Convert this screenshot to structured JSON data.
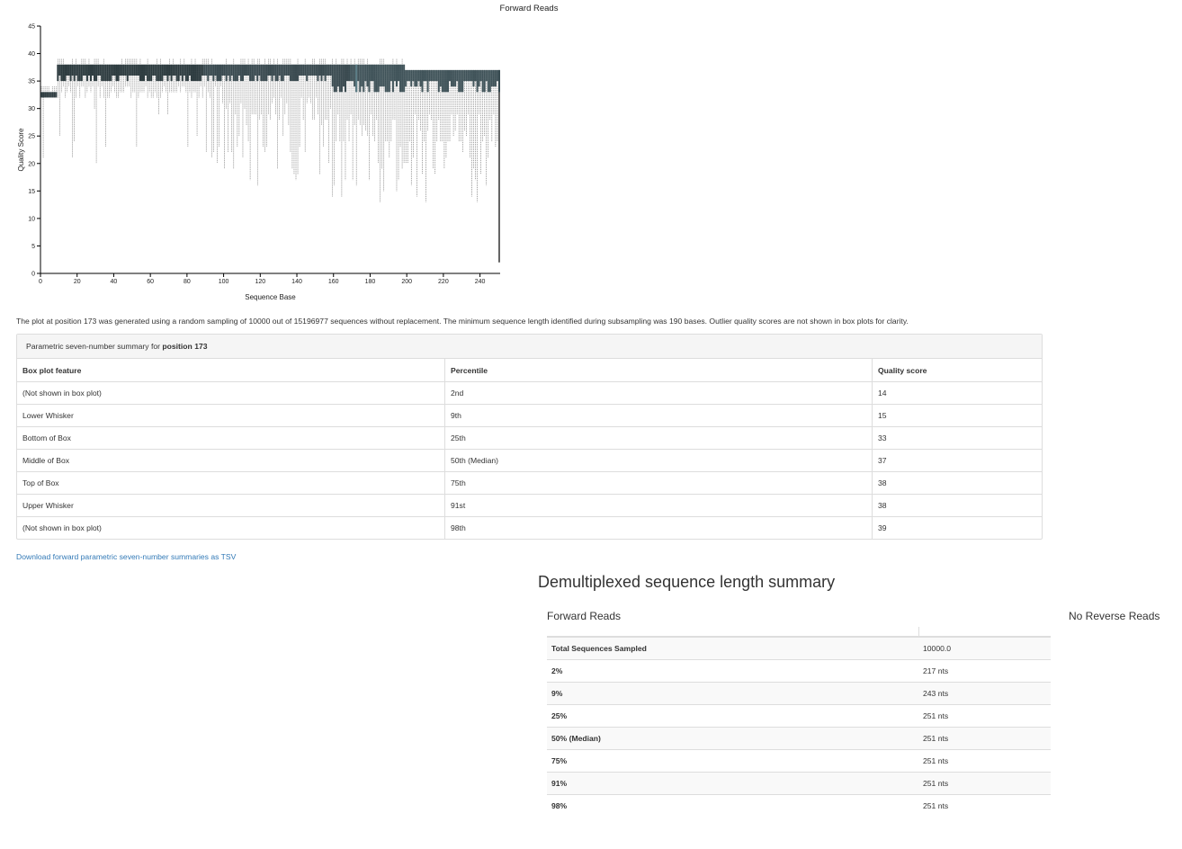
{
  "chart_title": "Forward Reads",
  "chart_data": {
    "type": "box",
    "title": "Forward Reads",
    "xlabel": "Sequence Base",
    "ylabel": "Quality Score",
    "xlim": [
      0,
      251
    ],
    "ylim": [
      0,
      45
    ],
    "xticks": [
      0,
      20,
      40,
      60,
      80,
      100,
      120,
      140,
      160,
      180,
      200,
      220,
      240
    ],
    "yticks": [
      0,
      5,
      10,
      15,
      20,
      25,
      30,
      35,
      40,
      45
    ],
    "positions": 251,
    "last_position_lower_whisker": 2,
    "highlighted_position": 173
  },
  "note": "The plot at position 173 was generated using a random sampling of 10000 out of 15196977 sequences without replacement. The minimum sequence length identified during subsampling was 190 bases. Outlier quality scores are not shown in box plots for clarity.",
  "summary": {
    "heading_prefix": "Parametric seven-number summary for ",
    "heading_position": "position 173",
    "columns": [
      "Box plot feature",
      "Percentile",
      "Quality score"
    ],
    "rows": [
      [
        "(Not shown in box plot)",
        "2nd",
        "14"
      ],
      [
        "Lower Whisker",
        "9th",
        "15"
      ],
      [
        "Bottom of Box",
        "25th",
        "33"
      ],
      [
        "Middle of Box",
        "50th (Median)",
        "37"
      ],
      [
        "Top of Box",
        "75th",
        "38"
      ],
      [
        "Upper Whisker",
        "91st",
        "38"
      ],
      [
        "(Not shown in box plot)",
        "98th",
        "39"
      ]
    ]
  },
  "download_link": "Download forward parametric seven-number summaries as TSV",
  "length_summary": {
    "heading": "Demultiplexed sequence length summary",
    "forward_heading": "Forward Reads",
    "reverse_heading": "No Reverse Reads",
    "rows": [
      [
        "Total Sequences Sampled",
        "10000.0"
      ],
      [
        "2%",
        "217 nts"
      ],
      [
        "9%",
        "243 nts"
      ],
      [
        "25%",
        "251 nts"
      ],
      [
        "50% (Median)",
        "251 nts"
      ],
      [
        "75%",
        "251 nts"
      ],
      [
        "91%",
        "251 nts"
      ],
      [
        "98%",
        "251 nts"
      ]
    ]
  }
}
